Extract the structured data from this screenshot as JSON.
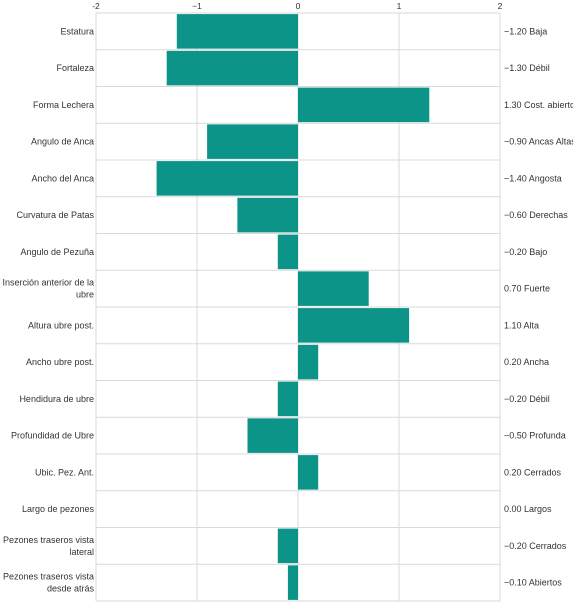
{
  "colors": {
    "bar": "#0d9488",
    "grid": "#d9d9d9",
    "text": "#333333",
    "background": "#ffffff"
  },
  "chart_data": {
    "type": "bar",
    "orientation": "horizontal",
    "title": "",
    "xlabel": "",
    "ylabel": "",
    "xlim": [
      -2,
      2
    ],
    "x_ticks": [
      -2,
      -1,
      0,
      1,
      2
    ],
    "x_tick_labels": [
      "-2",
      "−1",
      "0",
      "1",
      "2"
    ],
    "grid": true,
    "legend": "none",
    "categories": [
      "Estatura",
      "Fortaleza",
      "Forma Lechera",
      "Angulo de Anca",
      "Ancho del Anca",
      "Curvatura de Patas",
      "Angulo de Pezuña",
      "Inserción anterior de la ubre",
      "Altura ubre post.",
      "Ancho ubre post.",
      "Hendidura de ubre",
      "Profundidad de Ubre",
      "Ubic. Pez. Ant.",
      "Largo de pezones",
      "Pezones traseros vista lateral",
      "Pezones traseros vista desde atrás"
    ],
    "category_label_lines": [
      [
        "Estatura"
      ],
      [
        "Fortaleza"
      ],
      [
        "Forma Lechera"
      ],
      [
        "Angulo de Anca"
      ],
      [
        "Ancho del Anca"
      ],
      [
        "Curvatura de Patas"
      ],
      [
        "Angulo de Pezuña"
      ],
      [
        "Inserción anterior de la",
        "ubre"
      ],
      [
        "Altura ubre post."
      ],
      [
        "Ancho ubre post."
      ],
      [
        "Hendidura de ubre"
      ],
      [
        "Profundidad de Ubre"
      ],
      [
        "Ubic. Pez. Ant."
      ],
      [
        "Largo de pezones"
      ],
      [
        "Pezones traseros vista",
        "lateral"
      ],
      [
        "Pezones traseros vista",
        "desde atrás"
      ]
    ],
    "values": [
      -1.2,
      -1.3,
      1.3,
      -0.9,
      -1.4,
      -0.6,
      -0.2,
      0.7,
      1.1,
      0.2,
      -0.2,
      -0.5,
      0.2,
      0.0,
      -0.2,
      -0.1
    ],
    "value_labels": [
      "−1.20 Baja",
      "−1.30 Débil",
      "1.30 Cost. abierto",
      "−0.90 Ancas Altas",
      "−1.40 Angosta",
      "−0.60 Derechas",
      "−0.20 Bajo",
      "0.70 Fuerte",
      "1.10 Alta",
      "0.20 Ancha",
      "−0.20 Débil",
      "−0.50 Profunda",
      "0.20 Cerrados",
      "0.00 Largos",
      "−0.20 Cerrados",
      "−0.10 Abiertos"
    ]
  }
}
